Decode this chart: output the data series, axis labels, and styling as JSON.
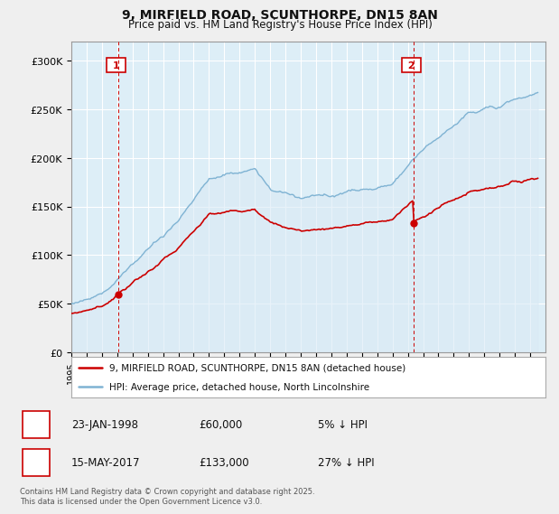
{
  "title_line1": "9, MIRFIELD ROAD, SCUNTHORPE, DN15 8AN",
  "title_line2": "Price paid vs. HM Land Registry's House Price Index (HPI)",
  "ylim": [
    0,
    320000
  ],
  "yticks": [
    0,
    50000,
    100000,
    150000,
    200000,
    250000,
    300000
  ],
  "ytick_labels": [
    "£0",
    "£50K",
    "£100K",
    "£150K",
    "£200K",
    "£250K",
    "£300K"
  ],
  "hpi_color": "#7fb3d3",
  "hpi_fill_color": "#daeaf5",
  "price_color": "#cc0000",
  "vline_color": "#cc0000",
  "sale1_year": 1998.06,
  "sale1_price": 60000,
  "sale2_year": 2017.37,
  "sale2_price": 133000,
  "legend_entry1": "9, MIRFIELD ROAD, SCUNTHORPE, DN15 8AN (detached house)",
  "legend_entry2": "HPI: Average price, detached house, North Lincolnshire",
  "table_row1": [
    "1",
    "23-JAN-1998",
    "£60,000",
    "5% ↓ HPI"
  ],
  "table_row2": [
    "2",
    "15-MAY-2017",
    "£133,000",
    "27% ↓ HPI"
  ],
  "footnote": "Contains HM Land Registry data © Crown copyright and database right 2025.\nThis data is licensed under the Open Government Licence v3.0.",
  "bg_color": "#efefef",
  "plot_bg_color": "#ddeef7",
  "grid_color": "#ffffff",
  "xmin": 1995,
  "xmax": 2026
}
